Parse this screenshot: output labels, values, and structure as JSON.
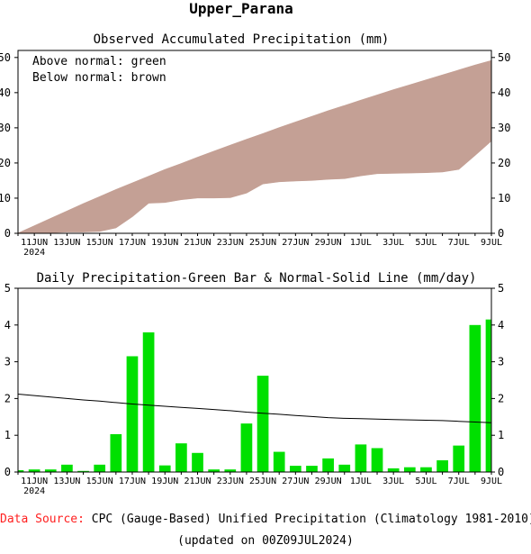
{
  "page": {
    "title": "Upper_Parana",
    "footer_source_label": "Data Source:",
    "footer_source_text": "CPC (Gauge-Based) Unified Precipitation (Climatology 1981-2010)",
    "footer_updated": "(updated on 00Z09JUL2024)"
  },
  "colors": {
    "normal_band": "#c4a095",
    "daily_bar": "#00e000",
    "source_label": "#ff2020",
    "axis": "#000000"
  },
  "chart_data": [
    {
      "type": "area",
      "title": "Observed Accumulated Precipitation (mm)",
      "annotations": [
        "Above normal: green",
        "Below normal: brown"
      ],
      "xlabel": "",
      "ylabel": "",
      "x": [
        "10JUN",
        "11JUN",
        "12JUN",
        "13JUN",
        "14JUN",
        "15JUN",
        "16JUN",
        "17JUN",
        "18JUN",
        "19JUN",
        "20JUN",
        "21JUN",
        "22JUN",
        "23JUN",
        "24JUN",
        "25JUN",
        "26JUN",
        "27JUN",
        "28JUN",
        "29JUN",
        "30JUN",
        "1JUL",
        "2JUL",
        "3JUL",
        "4JUL",
        "5JUL",
        "6JUL",
        "7JUL",
        "8JUL",
        "9JUL"
      ],
      "x_tick_labels": [
        "11JUN",
        "13JUN",
        "15JUN",
        "17JUN",
        "19JUN",
        "21JUN",
        "23JUN",
        "25JUN",
        "27JUN",
        "29JUN",
        "1JUL",
        "3JUL",
        "5JUL",
        "7JUL",
        "9JUL"
      ],
      "x_year_label": "2024",
      "ylim": [
        0,
        52
      ],
      "yticks": [
        0,
        10,
        20,
        30,
        40,
        50
      ],
      "series": [
        {
          "values": [
            0,
            0.1,
            0.2,
            0.4,
            0.4,
            0.6,
            1.6,
            4.8,
            8.6,
            8.8,
            9.6,
            10.1,
            10.1,
            10.2,
            11.5,
            14.1,
            14.7,
            14.9,
            15.1,
            15.4,
            15.6,
            16.4,
            17.0,
            17.1,
            17.2,
            17.3,
            17.5,
            18.2,
            22.2,
            26.3
          ]
        },
        {
          "values": [
            0,
            2.1,
            4.2,
            6.3,
            8.4,
            10.4,
            12.4,
            14.3,
            16.2,
            18.1,
            19.8,
            21.6,
            23.3,
            25.0,
            26.7,
            28.3,
            30.0,
            31.6,
            33.2,
            34.8,
            36.3,
            37.8,
            39.3,
            40.8,
            42.2,
            43.6,
            45.0,
            46.4,
            47.8,
            49.1
          ]
        }
      ]
    },
    {
      "type": "bar",
      "title": "Daily Precipitation-Green Bar & Normal-Solid Line (mm/day)",
      "xlabel": "",
      "ylabel": "",
      "categories": [
        "10JUN",
        "11JUN",
        "12JUN",
        "13JUN",
        "14JUN",
        "15JUN",
        "16JUN",
        "17JUN",
        "18JUN",
        "19JUN",
        "20JUN",
        "21JUN",
        "22JUN",
        "23JUN",
        "24JUN",
        "25JUN",
        "26JUN",
        "27JUN",
        "28JUN",
        "29JUN",
        "30JUN",
        "1JUL",
        "2JUL",
        "3JUL",
        "4JUL",
        "5JUL",
        "6JUL",
        "7JUL",
        "8JUL",
        "9JUL"
      ],
      "x_tick_labels": [
        "11JUN",
        "13JUN",
        "15JUN",
        "17JUN",
        "19JUN",
        "21JUN",
        "23JUN",
        "25JUN",
        "27JUN",
        "29JUN",
        "1JUL",
        "3JUL",
        "5JUL",
        "7JUL",
        "9JUL"
      ],
      "x_year_label": "2024",
      "ylim": [
        0,
        5
      ],
      "yticks": [
        0,
        1,
        2,
        3,
        4,
        5
      ],
      "series": [
        {
          "values": [
            0.05,
            0.07,
            0.07,
            0.2,
            0.03,
            0.2,
            1.03,
            3.15,
            3.8,
            0.18,
            0.78,
            0.52,
            0.07,
            0.07,
            1.32,
            2.62,
            0.55,
            0.17,
            0.17,
            0.37,
            0.2,
            0.75,
            0.65,
            0.1,
            0.13,
            0.13,
            0.32,
            0.72,
            4.0,
            4.15
          ]
        },
        {
          "values": [
            2.12,
            2.08,
            2.04,
            2.0,
            1.96,
            1.93,
            1.89,
            1.85,
            1.82,
            1.79,
            1.76,
            1.73,
            1.7,
            1.67,
            1.63,
            1.6,
            1.57,
            1.54,
            1.51,
            1.48,
            1.46,
            1.45,
            1.44,
            1.43,
            1.42,
            1.41,
            1.4,
            1.38,
            1.36,
            1.34
          ]
        }
      ]
    }
  ]
}
